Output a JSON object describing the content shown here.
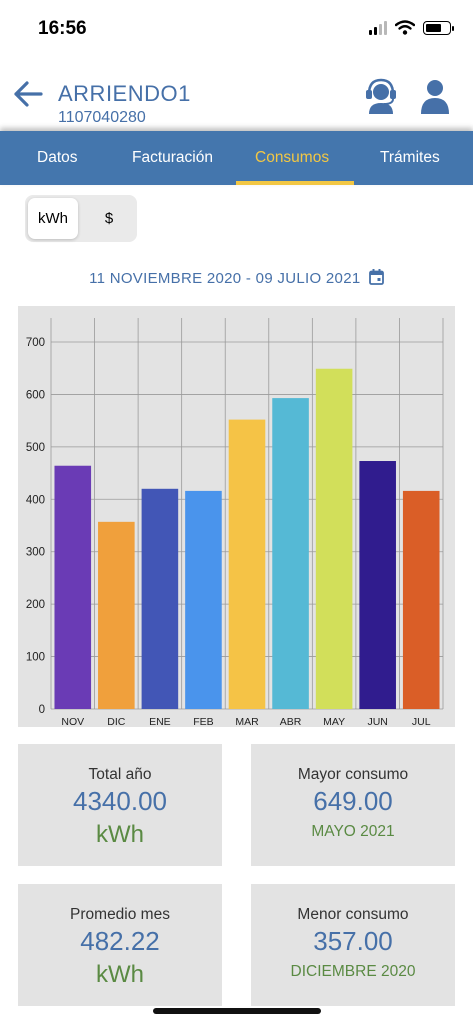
{
  "status_bar": {
    "time": "16:56"
  },
  "header": {
    "title": "ARRIENDO1",
    "account_number": "1107040280",
    "back_icon": "arrow-left-icon",
    "support_icon": "headset-icon",
    "user_icon": "user-icon"
  },
  "tabs": [
    {
      "label": "Datos",
      "active": false
    },
    {
      "label": "Facturación",
      "active": false
    },
    {
      "label": "Consumos",
      "active": true
    },
    {
      "label": "Trámites",
      "active": false
    }
  ],
  "unit_toggle": {
    "options": [
      "kWh",
      "$"
    ],
    "selected": "kWh"
  },
  "date_range": {
    "label": "11 NOVIEMBRE 2020 - 09 JULIO 2021",
    "icon": "calendar-icon"
  },
  "colors": {
    "brand_blue": "#4476ad",
    "accent_yellow": "#f2c744",
    "text_blue": "#4670a8",
    "text_green": "#5a8a43"
  },
  "chart_data": {
    "type": "bar",
    "categories": [
      "NOV",
      "DIC",
      "ENE",
      "FEB",
      "MAR",
      "ABR",
      "MAY",
      "JUN",
      "JUL"
    ],
    "values": [
      464,
      357,
      420,
      416,
      552,
      593,
      649,
      473,
      416
    ],
    "colors": [
      "#6a3bb5",
      "#f0a03c",
      "#4256b6",
      "#4a94ec",
      "#f5c346",
      "#55b9d5",
      "#d2df5a",
      "#301c8e",
      "#da5e27"
    ],
    "ylim": [
      0,
      720
    ],
    "yticks": [
      0,
      100,
      200,
      300,
      400,
      500,
      600,
      700
    ],
    "grid": true,
    "title": "",
    "xlabel": "",
    "ylabel": ""
  },
  "stats": {
    "total": {
      "label": "Total año",
      "value": "4340.00",
      "unit": "kWh"
    },
    "max": {
      "label": "Mayor consumo",
      "value": "649.00",
      "period": "MAYO 2021"
    },
    "avg": {
      "label": "Promedio mes",
      "value": "482.22",
      "unit": "kWh"
    },
    "min": {
      "label": "Menor consumo",
      "value": "357.00",
      "period": "DICIEMBRE 2020"
    }
  }
}
